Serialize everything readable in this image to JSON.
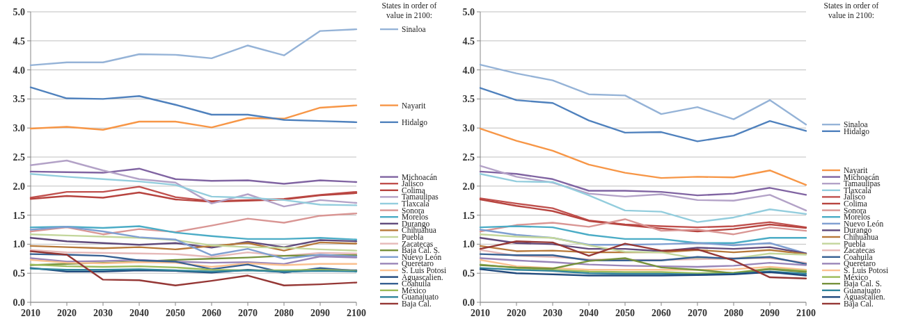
{
  "chart_data": [
    {
      "type": "line",
      "x": [
        2010,
        2020,
        2030,
        2040,
        2050,
        2060,
        2070,
        2080,
        2090,
        2100
      ],
      "xlim": [
        2010,
        2100
      ],
      "xticks": [
        2010,
        2020,
        2030,
        2040,
        2050,
        2060,
        2070,
        2080,
        2090,
        2100
      ],
      "ylim": [
        0,
        5
      ],
      "yticks": [
        {
          "value": 0,
          "label": "0.0"
        },
        0.5,
        {
          "value": 1,
          "label": "1.0"
        },
        1.5,
        {
          "value": 2,
          "label": "2.0"
        },
        2.5,
        {
          "value": 3,
          "label": "3.0"
        },
        3.5,
        {
          "value": 4,
          "label": "4.0"
        },
        4.5,
        {
          "value": 5,
          "label": "5.0"
        }
      ],
      "grid": "y",
      "legend": "right",
      "legend_title": "States in order of value in 2100:",
      "series": [
        {
          "name": "Sinaloa",
          "color": "#95b3d7",
          "values": [
            4.08,
            4.13,
            4.13,
            4.27,
            4.26,
            4.2,
            4.42,
            4.25,
            4.67,
            4.7
          ]
        },
        {
          "name": "Nayarit",
          "color": "#f79646",
          "values": [
            2.99,
            3.02,
            2.97,
            3.11,
            3.11,
            3.01,
            3.17,
            3.16,
            3.35,
            3.39
          ]
        },
        {
          "name": "Hidalgo",
          "color": "#4f81bd",
          "values": [
            3.7,
            3.51,
            3.5,
            3.55,
            3.4,
            3.23,
            3.23,
            3.14,
            3.12,
            3.1
          ]
        },
        {
          "name": "Michoacán",
          "color": "#8064a2",
          "values": [
            2.25,
            2.24,
            2.23,
            2.3,
            2.12,
            2.09,
            2.1,
            2.04,
            2.1,
            2.07
          ]
        },
        {
          "name": "Jalisco",
          "color": "#c0504d",
          "values": [
            1.8,
            1.9,
            1.9,
            1.99,
            1.81,
            1.74,
            1.76,
            1.78,
            1.85,
            1.9
          ]
        },
        {
          "name": "Colima",
          "color": "#b7443f",
          "values": [
            1.78,
            1.83,
            1.8,
            1.89,
            1.77,
            1.73,
            1.75,
            1.77,
            1.84,
            1.88
          ]
        },
        {
          "name": "Tamaulipas",
          "color": "#b3a2c7",
          "values": [
            2.36,
            2.44,
            2.27,
            2.12,
            2.06,
            1.7,
            1.86,
            1.65,
            1.76,
            1.71
          ]
        },
        {
          "name": "Tlaxcala",
          "color": "#93cddd",
          "values": [
            2.21,
            2.16,
            2.12,
            2.08,
            2.02,
            1.82,
            1.8,
            1.76,
            1.68,
            1.67
          ]
        },
        {
          "name": "Sonora",
          "color": "#d99694",
          "values": [
            1.22,
            1.29,
            1.17,
            1.26,
            1.21,
            1.32,
            1.44,
            1.37,
            1.49,
            1.53
          ]
        },
        {
          "name": "Morelos",
          "color": "#4bacc6",
          "values": [
            1.29,
            1.3,
            1.28,
            1.31,
            1.2,
            1.14,
            1.09,
            1.09,
            1.11,
            1.08
          ]
        },
        {
          "name": "Durango",
          "color": "#604a7b",
          "values": [
            1.11,
            1.05,
            1.02,
            0.99,
            1.02,
            0.94,
            1.04,
            0.95,
            1.07,
            1.05
          ]
        },
        {
          "name": "Chihuahua",
          "color": "#b7793a",
          "values": [
            0.97,
            0.95,
            0.93,
            0.95,
            0.91,
            0.97,
            1.02,
            0.89,
            1.03,
            1.01
          ]
        },
        {
          "name": "Puebla",
          "color": "#c3d69b",
          "values": [
            1.17,
            1.15,
            1.13,
            1.11,
            1.07,
            0.98,
            0.95,
            0.94,
            0.91,
            0.89
          ]
        },
        {
          "name": "Zacatecas",
          "color": "#e6b9b8",
          "values": [
            0.9,
            0.86,
            0.85,
            0.84,
            0.83,
            0.78,
            0.86,
            0.8,
            0.85,
            0.84
          ]
        },
        {
          "name": "Baja Cal. S.",
          "color": "#76923c",
          "values": [
            0.64,
            0.66,
            0.68,
            0.7,
            0.73,
            0.75,
            0.77,
            0.8,
            0.81,
            0.81
          ]
        },
        {
          "name": "Nuevo León",
          "color": "#7f9fd1",
          "values": [
            1.25,
            1.3,
            1.22,
            1.12,
            1.08,
            0.81,
            0.92,
            0.75,
            0.82,
            0.79
          ]
        },
        {
          "name": "Querétaro",
          "color": "#9985b8",
          "values": [
            0.76,
            0.7,
            0.71,
            0.73,
            0.7,
            0.68,
            0.69,
            0.66,
            0.79,
            0.77
          ]
        },
        {
          "name": "S. Luis Potosi",
          "color": "#fac090",
          "values": [
            0.73,
            0.68,
            0.67,
            0.69,
            0.68,
            0.61,
            0.67,
            0.64,
            0.66,
            0.66
          ]
        },
        {
          "name": "Aguascalien.",
          "color": "#1f497d",
          "values": [
            0.59,
            0.53,
            0.53,
            0.55,
            0.54,
            0.51,
            0.56,
            0.52,
            0.56,
            0.55
          ]
        },
        {
          "name": "Coahuila",
          "color": "#376092",
          "values": [
            0.83,
            0.82,
            0.8,
            0.72,
            0.7,
            0.57,
            0.65,
            0.51,
            0.59,
            0.54
          ]
        },
        {
          "name": "México",
          "color": "#9bbb59",
          "values": [
            0.65,
            0.62,
            0.61,
            0.62,
            0.6,
            0.56,
            0.55,
            0.55,
            0.56,
            0.54
          ]
        },
        {
          "name": "Guanajuato",
          "color": "#31859c",
          "values": [
            0.58,
            0.56,
            0.56,
            0.57,
            0.55,
            0.53,
            0.55,
            0.53,
            0.54,
            0.53
          ]
        },
        {
          "name": "Baja Cal.",
          "color": "#953735",
          "values": [
            0.88,
            0.82,
            0.39,
            0.38,
            0.29,
            0.37,
            0.46,
            0.29,
            0.31,
            0.34
          ]
        }
      ]
    },
    {
      "type": "line",
      "x": [
        2010,
        2020,
        2030,
        2040,
        2050,
        2060,
        2070,
        2080,
        2090,
        2100
      ],
      "xlim": [
        2010,
        2100
      ],
      "xticks": [
        2010,
        2020,
        2030,
        2040,
        2050,
        2060,
        2070,
        2080,
        2090,
        2100
      ],
      "ylim": [
        0,
        5
      ],
      "yticks": [
        {
          "value": 0,
          "label": "0.0"
        },
        0.5,
        {
          "value": 1,
          "label": "1.0"
        },
        1.5,
        {
          "value": 2,
          "label": "2.0"
        },
        2.5,
        {
          "value": 3,
          "label": "3.0"
        },
        3.5,
        {
          "value": 4,
          "label": "4.0"
        },
        4.5,
        {
          "value": 5,
          "label": "5.0"
        }
      ],
      "grid": "y",
      "legend": "right",
      "legend_title": "States in order of value in 2100:",
      "series": [
        {
          "name": "Sinaloa",
          "color": "#95b3d7",
          "values": [
            4.09,
            3.94,
            3.82,
            3.58,
            3.56,
            3.24,
            3.36,
            3.15,
            3.48,
            3.06
          ]
        },
        {
          "name": "Hidalgo",
          "color": "#4f81bd",
          "values": [
            3.69,
            3.48,
            3.43,
            3.13,
            2.92,
            2.93,
            2.77,
            2.87,
            3.12,
            2.95
          ]
        },
        {
          "name": "Nayarit",
          "color": "#f79646",
          "values": [
            2.99,
            2.78,
            2.61,
            2.37,
            2.23,
            2.14,
            2.16,
            2.15,
            2.27,
            2.02
          ]
        },
        {
          "name": "Michoacán",
          "color": "#8064a2",
          "values": [
            2.25,
            2.21,
            2.12,
            1.92,
            1.92,
            1.9,
            1.84,
            1.87,
            1.97,
            1.85
          ]
        },
        {
          "name": "Tamaulipas",
          "color": "#b3a2c7",
          "values": [
            2.35,
            2.16,
            2.06,
            1.87,
            1.82,
            1.86,
            1.76,
            1.75,
            1.85,
            1.58
          ]
        },
        {
          "name": "Tlaxcala",
          "color": "#93cddd",
          "values": [
            2.21,
            2.08,
            2.07,
            1.84,
            1.58,
            1.56,
            1.38,
            1.46,
            1.6,
            1.52
          ]
        },
        {
          "name": "Jalisco",
          "color": "#c0504d",
          "values": [
            1.79,
            1.7,
            1.62,
            1.41,
            1.34,
            1.31,
            1.29,
            1.31,
            1.38,
            1.29
          ]
        },
        {
          "name": "Colima",
          "color": "#b7443f",
          "values": [
            1.77,
            1.66,
            1.57,
            1.4,
            1.33,
            1.27,
            1.22,
            1.26,
            1.34,
            1.28
          ]
        },
        {
          "name": "Sonora",
          "color": "#d99694",
          "values": [
            1.22,
            1.33,
            1.37,
            1.3,
            1.43,
            1.23,
            1.25,
            1.17,
            1.29,
            1.23
          ]
        },
        {
          "name": "Morelos",
          "color": "#4bacc6",
          "values": [
            1.29,
            1.31,
            1.29,
            1.16,
            1.09,
            1.09,
            1.02,
            1.02,
            1.11,
            1.11
          ]
        },
        {
          "name": "Nuevo León",
          "color": "#7f9fd1",
          "values": [
            1.25,
            1.16,
            1.11,
            0.99,
            0.99,
            1.0,
            1.02,
            0.98,
            1.02,
            0.84
          ]
        },
        {
          "name": "Durango",
          "color": "#604a7b",
          "values": [
            1.11,
            1.02,
            1.0,
            0.92,
            0.92,
            0.88,
            0.94,
            0.92,
            0.95,
            0.84
          ]
        },
        {
          "name": "Chihuahua",
          "color": "#b7793a",
          "values": [
            0.97,
            0.88,
            0.89,
            0.86,
            0.86,
            0.86,
            0.9,
            0.86,
            0.9,
            0.83
          ]
        },
        {
          "name": "Puebla",
          "color": "#c3d69b",
          "values": [
            1.17,
            1.13,
            1.11,
            0.98,
            0.87,
            0.86,
            0.75,
            0.75,
            0.84,
            0.82
          ]
        },
        {
          "name": "Zacatecas",
          "color": "#e6b9b8",
          "values": [
            0.9,
            0.8,
            0.78,
            0.74,
            0.73,
            0.73,
            0.74,
            0.76,
            0.76,
            0.68
          ]
        },
        {
          "name": "Coahuila",
          "color": "#376092",
          "values": [
            0.83,
            0.81,
            0.81,
            0.72,
            0.72,
            0.72,
            0.78,
            0.75,
            0.78,
            0.66
          ]
        },
        {
          "name": "Querétaro",
          "color": "#9985b8",
          "values": [
            0.76,
            0.72,
            0.69,
            0.65,
            0.63,
            0.62,
            0.61,
            0.63,
            0.68,
            0.64
          ]
        },
        {
          "name": "S. Luis Potosi",
          "color": "#fac090",
          "values": [
            0.73,
            0.62,
            0.59,
            0.56,
            0.56,
            0.56,
            0.56,
            0.57,
            0.61,
            0.56
          ]
        },
        {
          "name": "México",
          "color": "#9bbb59",
          "values": [
            0.65,
            0.59,
            0.56,
            0.53,
            0.52,
            0.52,
            0.5,
            0.51,
            0.58,
            0.54
          ]
        },
        {
          "name": "Baja Cal. S.",
          "color": "#76923c",
          "values": [
            0.64,
            0.6,
            0.58,
            0.71,
            0.76,
            0.6,
            0.56,
            0.5,
            0.57,
            0.52
          ]
        },
        {
          "name": "Guanajuato",
          "color": "#31859c",
          "values": [
            0.59,
            0.56,
            0.54,
            0.5,
            0.49,
            0.49,
            0.48,
            0.49,
            0.53,
            0.49
          ]
        },
        {
          "name": "Aguascalien.",
          "color": "#1f497d",
          "values": [
            0.57,
            0.5,
            0.48,
            0.46,
            0.46,
            0.46,
            0.47,
            0.48,
            0.52,
            0.46
          ]
        },
        {
          "name": "Baja Cal.",
          "color": "#953735",
          "values": [
            0.92,
            1.05,
            1.03,
            0.8,
            1.01,
            0.89,
            0.91,
            0.72,
            0.43,
            0.41
          ]
        }
      ]
    }
  ]
}
